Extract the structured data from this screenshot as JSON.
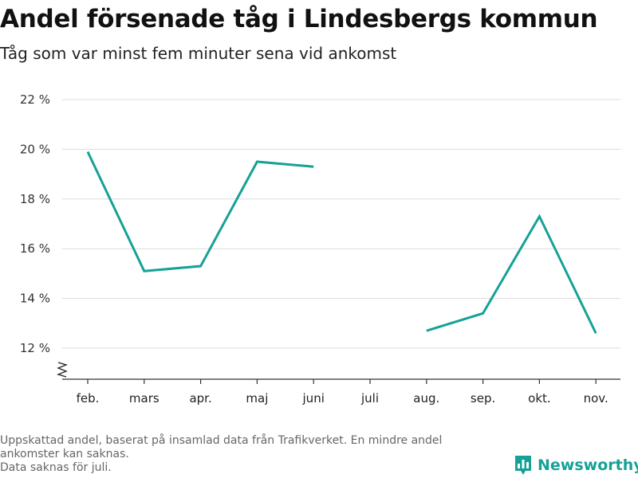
{
  "header": {
    "title": "Andel försenade tåg i Lindesbergs kommun",
    "subtitle": "Tåg som var minst fem minuter sena vid ankomst"
  },
  "chart_data": {
    "type": "line",
    "title": "Andel försenade tåg i Lindesbergs kommun",
    "subtitle": "Tåg som var minst fem minuter sena vid ankomst",
    "xlabel": "",
    "ylabel": "",
    "categories": [
      "feb.",
      "mars",
      "apr.",
      "maj",
      "juni",
      "juli",
      "aug.",
      "sep.",
      "okt.",
      "nov."
    ],
    "series": [
      {
        "values": [
          19.9,
          15.1,
          15.3,
          19.5,
          19.3,
          null,
          12.7,
          13.4,
          17.3,
          12.6
        ]
      }
    ],
    "ylim": [
      11,
      22
    ],
    "yticks": [
      12,
      14,
      16,
      18,
      20,
      22
    ],
    "ytick_labels": [
      "12 %",
      "14 %",
      "16 %",
      "18 %",
      "20 %",
      "22 %"
    ],
    "grid": true,
    "axis_break": true,
    "line_color": "#16a197",
    "grid_color": "#dcdcdc"
  },
  "footnotes": {
    "line1": "Uppskattad andel, baserat på insamlad data från Trafikverket. En mindre andel",
    "line2": "ankomster kan saknas.",
    "line3": "Data saknas för juli."
  },
  "brand": {
    "name": "Newsworthy",
    "color": "#16a197",
    "icon": "bar-chart-pin-icon"
  }
}
